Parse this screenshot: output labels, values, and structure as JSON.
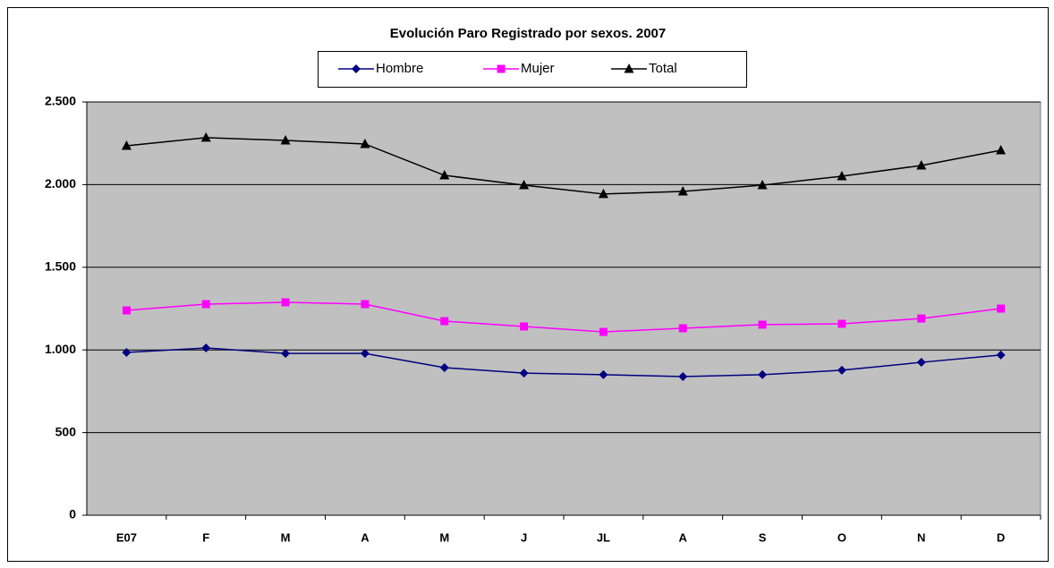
{
  "chart_data": {
    "type": "line",
    "title": "Evolución Paro Registrado por sexos. 2007",
    "categories": [
      "E07",
      "F",
      "M",
      "A",
      "M",
      "J",
      "JL",
      "A",
      "S",
      "O",
      "N",
      "D"
    ],
    "series": [
      {
        "name": "Hombre",
        "color": "#000080",
        "marker": "diamond",
        "values": [
          985,
          1012,
          979,
          979,
          893,
          860,
          850,
          839,
          850,
          877,
          925,
          969
        ]
      },
      {
        "name": "Mujer",
        "color": "#ff00ff",
        "marker": "square",
        "values": [
          1239,
          1277,
          1288,
          1277,
          1174,
          1142,
          1109,
          1131,
          1153,
          1158,
          1190,
          1250
        ]
      },
      {
        "name": "Total",
        "color": "#000000",
        "marker": "triangle",
        "values": [
          2235,
          2284,
          2267,
          2246,
          2056,
          1997,
          1943,
          1959,
          1997,
          2051,
          2116,
          2208
        ]
      }
    ],
    "ylim": [
      0,
      2500
    ],
    "yticks": [
      0,
      500,
      {
        "value": 1000,
        "label": "1.000"
      },
      {
        "value": 1500,
        "label": "1.500"
      },
      {
        "value": 2000,
        "label": "2.000"
      },
      {
        "value": 2500,
        "label": "2.500"
      }
    ],
    "grid": true,
    "legend": "top",
    "plot_background": "#c0c0c0"
  }
}
